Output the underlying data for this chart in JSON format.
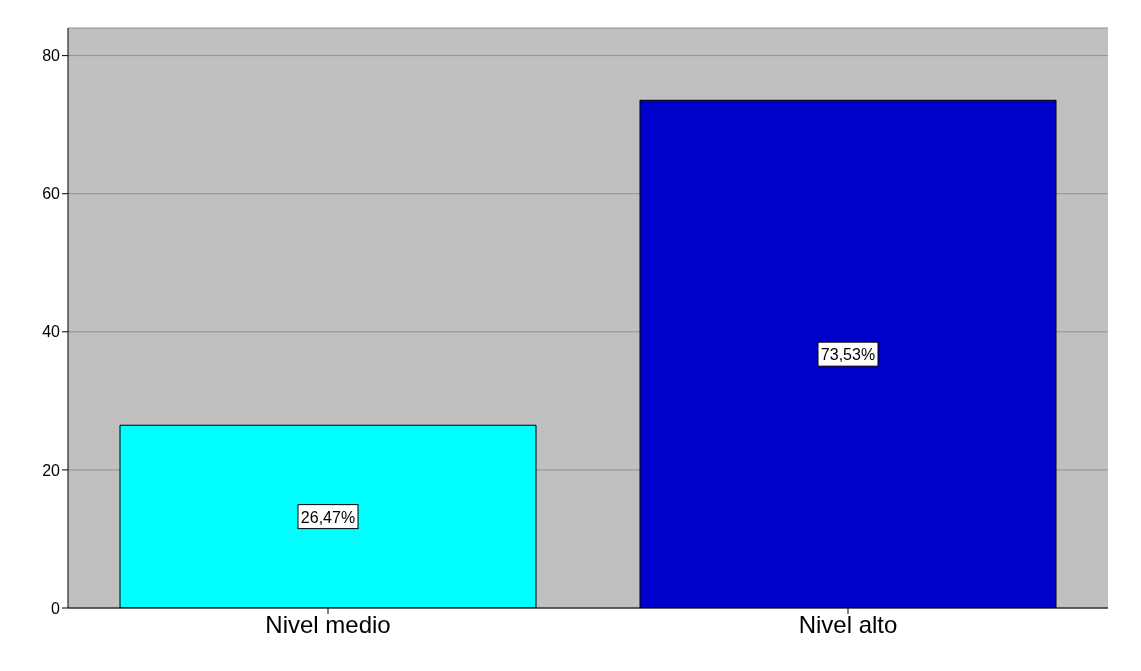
{
  "chart_data": {
    "type": "bar",
    "categories": [
      "Nivel medio",
      "Nivel alto"
    ],
    "values": [
      26.47,
      73.53
    ],
    "colors": [
      "#00ffff",
      "#0000cc"
    ],
    "value_labels": [
      "26,47%",
      "73,53%"
    ],
    "ylim": [
      0,
      84
    ],
    "yticks": [
      0,
      20,
      40,
      60,
      80
    ],
    "grid": "y"
  }
}
